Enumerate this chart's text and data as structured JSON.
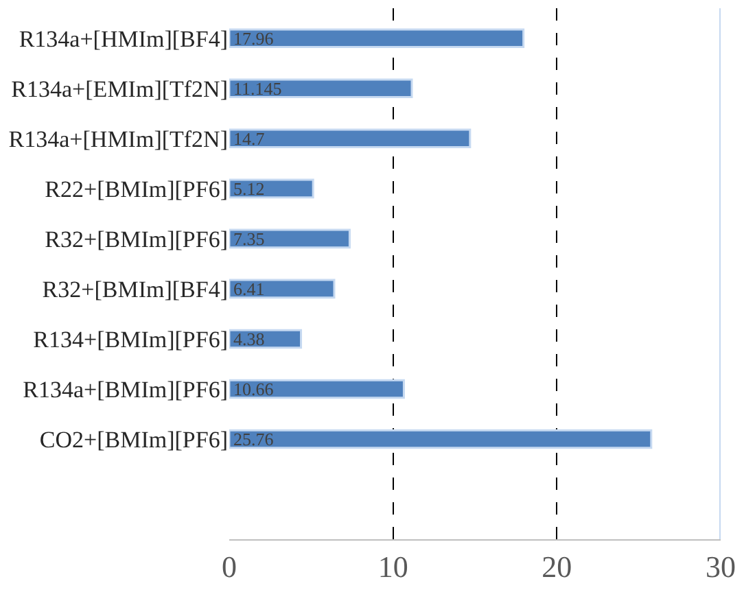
{
  "chart_data": {
    "type": "bar",
    "orientation": "horizontal",
    "categories": [
      "R134a+[HMIm][BF4]",
      "R134a+[EMIm][Tf2N]",
      "R134a+[HMIm][Tf2N]",
      "R22+[BMIm][PF6]",
      "R32+[BMIm][PF6]",
      "R32+[BMIm][BF4]",
      "R134+[BMIm][PF6]",
      "R134a+[BMIm][PF6]",
      "CO2+[BMIm][PF6]"
    ],
    "values": [
      17.96,
      11.145,
      14.7,
      5.12,
      7.35,
      6.41,
      4.38,
      10.66,
      25.76
    ],
    "color": "#4f81bd",
    "xlim": [
      0,
      30
    ],
    "xticks": [
      0,
      10,
      20,
      30
    ],
    "grid": "x",
    "line_style": "dashed",
    "data_labels": true,
    "legend": false
  }
}
